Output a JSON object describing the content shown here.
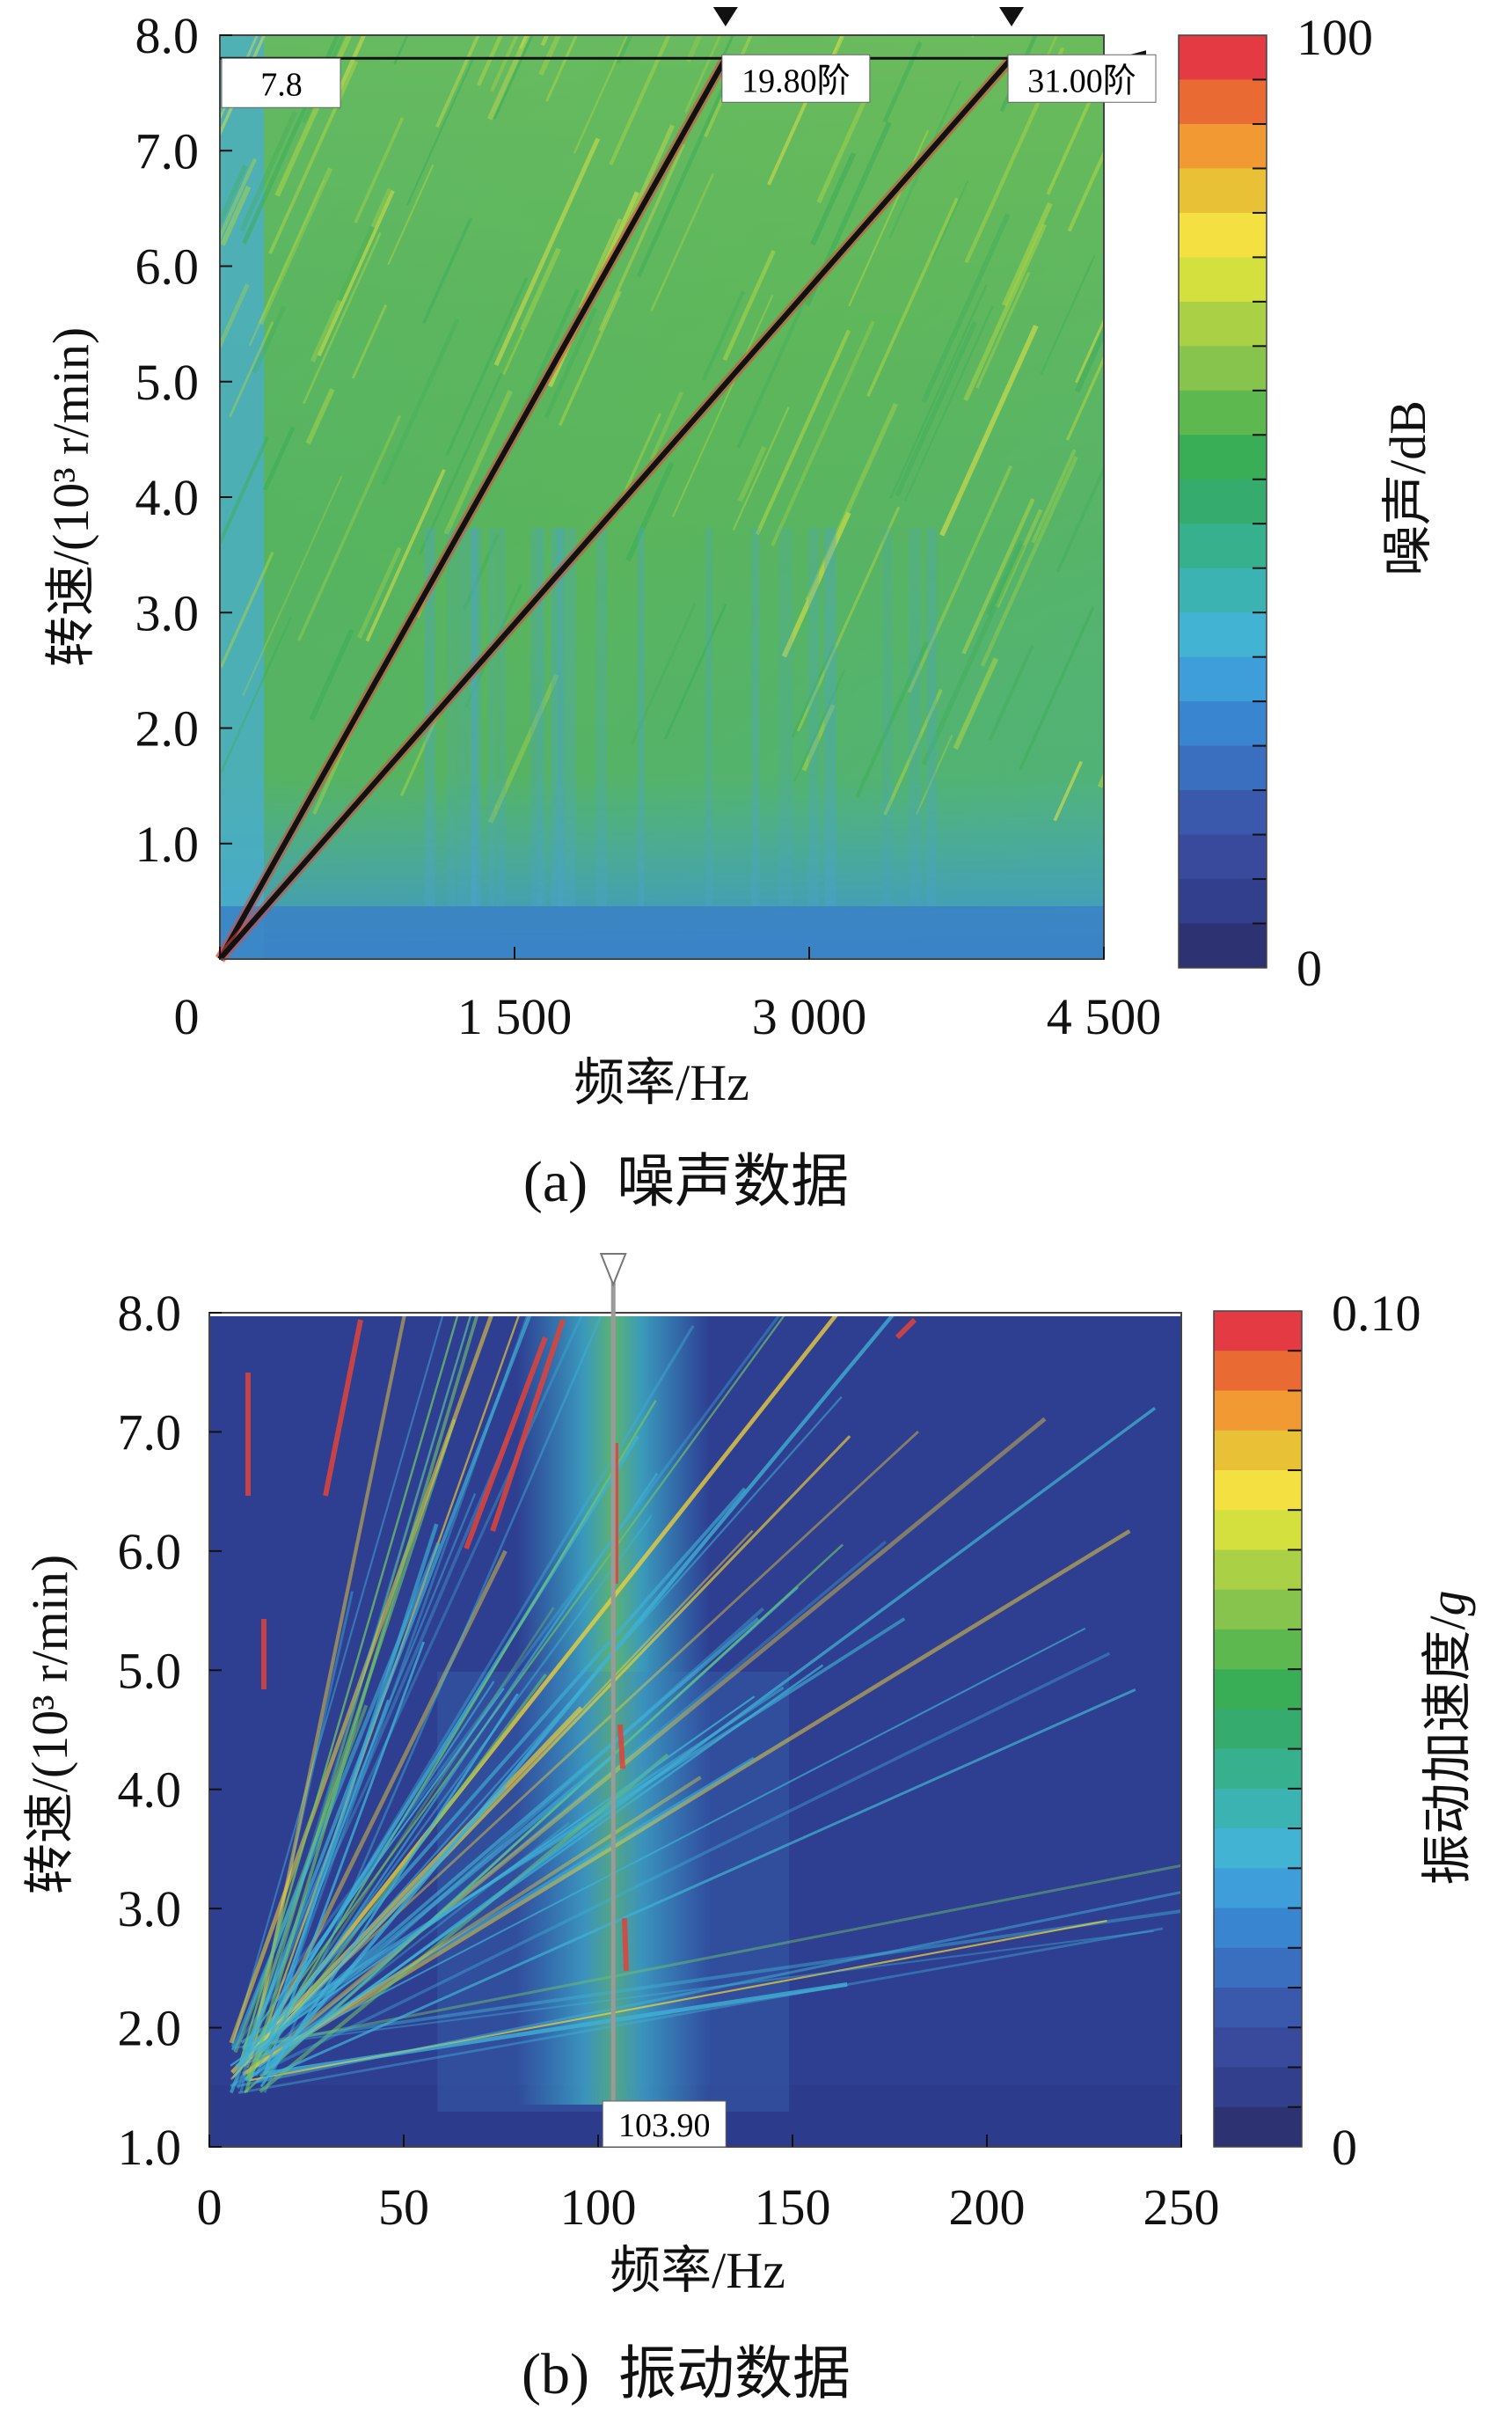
{
  "chart_data": [
    {
      "type": "heatmap",
      "caption": "(a)  噪声数据",
      "xlabel": "频率/Hz",
      "ylabel": "转速/(10³ r/min)",
      "colorbar_label": "噪声/dB",
      "colorbar_ticks": [
        "100",
        "0"
      ],
      "clim": [
        0,
        100
      ],
      "xlim": [
        0,
        4500
      ],
      "ylim": [
        0,
        8.0
      ],
      "x_ticks": [
        0,
        1500,
        3000,
        4500
      ],
      "x_tick_labels": [
        "0",
        "1 500",
        "3 000",
        "4 500"
      ],
      "y_ticks": [
        1.0,
        2.0,
        3.0,
        4.0,
        5.0,
        6.0,
        7.0,
        8.0
      ],
      "y_tick_labels": [
        "1.0",
        "2.0",
        "3.0",
        "4.0",
        "5.0",
        "6.0",
        "7.0",
        "8.0"
      ],
      "cursor_labels": [
        "7.8",
        "19.80阶",
        "31.00阶"
      ],
      "order_lines": [
        {
          "label": "19.80阶",
          "points": [
            [
              0,
              0
            ],
            [
              2574,
              7.8
            ]
          ]
        },
        {
          "label": "31.00阶",
          "points": [
            [
              0,
              0
            ],
            [
              4030,
              7.8
            ]
          ]
        }
      ],
      "speed_cursor": 7.8,
      "grid": false
    },
    {
      "type": "heatmap",
      "caption": "(b)  振动数据",
      "xlabel": "频率/Hz",
      "ylabel": "转速/(10³ r/min)",
      "colorbar_label": "振动加速度/",
      "colorbar_label_italic": "g",
      "colorbar_ticks": [
        "0.10",
        "0"
      ],
      "clim": [
        0,
        0.1
      ],
      "xlim": [
        0,
        250
      ],
      "ylim": [
        1.0,
        8.0
      ],
      "x_ticks": [
        0,
        50,
        100,
        150,
        200,
        250
      ],
      "x_tick_labels": [
        "0",
        "50",
        "100",
        "150",
        "200",
        "250"
      ],
      "y_ticks": [
        1.0,
        2.0,
        3.0,
        4.0,
        5.0,
        6.0,
        7.0,
        8.0
      ],
      "y_tick_labels": [
        "1.0",
        "2.0",
        "3.0",
        "4.0",
        "5.0",
        "6.0",
        "7.0",
        "8.0"
      ],
      "cursor_labels": [
        "103.90"
      ],
      "frequency_cursor": 103.9,
      "grid": false
    }
  ]
}
